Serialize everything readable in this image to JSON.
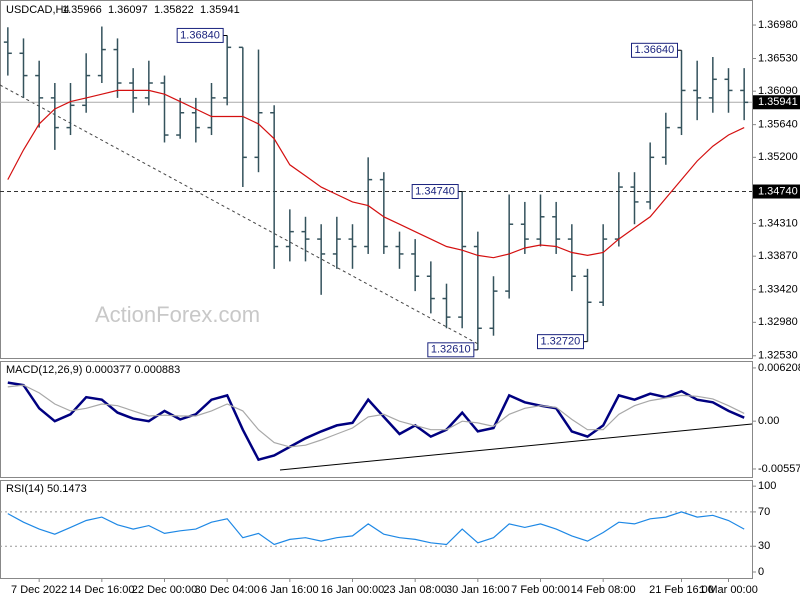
{
  "chart_data": [
    {
      "type": "ohlc",
      "title": "USDCAD,H4",
      "header_values": [
        "1.35966",
        "1.36097",
        "1.35822",
        "1.35941"
      ],
      "watermark": "ActionForex.com",
      "categories": [
        null,
        null,
        "7 Dec 2022",
        null,
        null,
        null,
        "14 Dec 16:00",
        null,
        null,
        null,
        "22 Dec 00:00",
        null,
        null,
        null,
        "30 Dec 04:00",
        null,
        null,
        null,
        "6 Jan 16:00",
        null,
        null,
        null,
        "16 Jan 00:00",
        null,
        null,
        null,
        "23 Jan 08:00",
        null,
        null,
        null,
        "30 Jan 16:00",
        null,
        null,
        null,
        "7 Feb 00:00",
        null,
        null,
        null,
        "14 Feb 08:00",
        null,
        null,
        null,
        null,
        "21 Feb 16:00",
        null,
        null,
        "1 Mar 00:00",
        null
      ],
      "open": [
        1.3675,
        1.366,
        1.363,
        1.36,
        1.356,
        1.359,
        1.363,
        1.3665,
        1.362,
        1.36,
        1.362,
        1.355,
        1.358,
        1.356,
        1.36,
        1.3668,
        1.352,
        1.358,
        1.34,
        1.342,
        1.341,
        1.339,
        1.341,
        1.34,
        1.349,
        1.34,
        1.339,
        1.336,
        1.333,
        1.3305,
        1.34,
        1.329,
        1.334,
        1.343,
        1.341,
        1.344,
        1.341,
        1.336,
        1.3325,
        1.341,
        1.348,
        1.346,
        1.352,
        1.356,
        1.361,
        1.36,
        1.3625,
        1.361
      ],
      "high": [
        1.3695,
        1.368,
        1.365,
        1.362,
        1.362,
        1.366,
        1.3696,
        1.368,
        1.364,
        1.365,
        1.363,
        1.36,
        1.36,
        1.362,
        1.3684,
        1.3668,
        1.3665,
        1.359,
        1.345,
        1.344,
        1.343,
        1.344,
        1.343,
        1.352,
        1.35,
        1.342,
        1.341,
        1.338,
        1.335,
        1.3474,
        1.342,
        1.336,
        1.347,
        1.346,
        1.347,
        1.346,
        1.343,
        1.337,
        1.343,
        1.35,
        1.35,
        1.354,
        1.358,
        1.3664,
        1.365,
        1.3655,
        1.364,
        1.364
      ],
      "low": [
        1.363,
        1.36,
        1.356,
        1.353,
        1.355,
        1.358,
        1.362,
        1.36,
        1.358,
        1.359,
        1.354,
        1.3545,
        1.354,
        1.355,
        1.359,
        1.348,
        1.35,
        1.337,
        1.338,
        1.338,
        1.3335,
        1.337,
        1.337,
        1.339,
        1.339,
        1.337,
        1.334,
        1.331,
        1.329,
        1.329,
        1.3261,
        1.328,
        1.333,
        1.339,
        1.34,
        1.339,
        1.334,
        1.3272,
        1.332,
        1.34,
        1.343,
        1.345,
        1.351,
        1.355,
        1.357,
        1.358,
        1.358,
        1.357
      ],
      "close": [
        1.366,
        1.363,
        1.36,
        1.356,
        1.359,
        1.363,
        1.3665,
        1.362,
        1.36,
        1.362,
        1.355,
        1.358,
        1.356,
        1.36,
        1.3668,
        1.352,
        1.358,
        1.34,
        1.342,
        1.341,
        1.339,
        1.341,
        1.34,
        1.349,
        1.34,
        1.339,
        1.336,
        1.333,
        1.3305,
        1.34,
        1.329,
        1.334,
        1.343,
        1.341,
        1.344,
        1.341,
        1.336,
        1.3325,
        1.341,
        1.348,
        1.346,
        1.352,
        1.356,
        1.361,
        1.36,
        1.3625,
        1.361,
        1.3594
      ],
      "color": "#34525c",
      "series": [
        {
          "color": "#d41010",
          "values": [
            1.349,
            1.353,
            1.3565,
            1.3585,
            1.3595,
            1.36,
            1.3605,
            1.361,
            1.361,
            1.361,
            1.3605,
            1.3595,
            1.3585,
            1.3575,
            1.3575,
            1.3575,
            1.3565,
            1.3545,
            1.351,
            1.3495,
            1.348,
            1.347,
            1.346,
            1.3455,
            1.344,
            1.343,
            1.342,
            1.341,
            1.34,
            1.3395,
            1.3388,
            1.3385,
            1.339,
            1.3398,
            1.3402,
            1.34,
            1.3392,
            1.3388,
            1.3392,
            1.341,
            1.3425,
            1.344,
            1.3465,
            1.349,
            1.3515,
            1.3535,
            1.355,
            1.356
          ]
        }
      ],
      "ylim": [
        1.325,
        1.3729
      ],
      "yticks": [
        {
          "value": 1.3698,
          "label": "1.36980"
        },
        {
          "value": 1.3653,
          "label": "1.36530"
        },
        {
          "value": 1.3609,
          "label": "1.36090"
        },
        {
          "value": 1.3564,
          "label": "1.35640"
        },
        {
          "value": 1.352,
          "label": "1.35200"
        },
        {
          "value": 1.3431,
          "label": "1.34310"
        },
        {
          "value": 1.3387,
          "label": "1.33870"
        },
        {
          "value": 1.3342,
          "label": "1.33420"
        },
        {
          "value": 1.3298,
          "label": "1.32980"
        },
        {
          "value": 1.3253,
          "label": "1.32530"
        }
      ],
      "levels": [
        {
          "value": 1.3474,
          "label": "1.34740"
        }
      ],
      "last_price": {
        "value": 1.35941,
        "label": "1.35941"
      },
      "annotations": [
        {
          "value": 1.3684,
          "label": "1.36840"
        },
        {
          "value": 1.3664,
          "label": "1.36640"
        },
        {
          "value": 1.3474,
          "label": "1.34740"
        },
        {
          "value": 1.3261,
          "label": "1.32610"
        },
        {
          "value": 1.3272,
          "label": "1.32720"
        }
      ]
    },
    {
      "type": "line",
      "title": "MACD(12,26,9) 0.000377 0.000883",
      "series": [
        {
          "color": "#000080",
          "values": [
            0.0045,
            0.0042,
            0.0015,
            0.0,
            0.0008,
            0.0028,
            0.0025,
            0.001,
            0.0003,
            0.0,
            0.0012,
            0.0002,
            0.0008,
            0.0025,
            0.003,
            -0.001,
            -0.0045,
            -0.004,
            -0.003,
            -0.002,
            -0.0012,
            -0.0005,
            -0.0002,
            0.0025,
            0.0005,
            -0.0015,
            -0.0005,
            -0.0018,
            -0.001,
            0.001,
            -0.0012,
            -0.0008,
            0.003,
            0.0022,
            0.0018,
            0.0015,
            -0.0012,
            -0.0018,
            -0.0005,
            0.003,
            0.0025,
            0.0032,
            0.0028,
            0.0035,
            0.0025,
            0.0022,
            0.0012,
            0.0004
          ]
        },
        {
          "color": "#a8a8a8",
          "values": [
            0.004,
            0.0042,
            0.0033,
            0.002,
            0.0012,
            0.0015,
            0.002,
            0.0018,
            0.0012,
            0.0006,
            0.0007,
            0.0006,
            0.0006,
            0.0012,
            0.002,
            0.0012,
            -0.001,
            -0.0025,
            -0.003,
            -0.0028,
            -0.0022,
            -0.0015,
            -0.0008,
            0.0005,
            0.0008,
            0.0,
            -0.0005,
            -0.001,
            -0.001,
            0.0,
            -0.0002,
            -0.0006,
            0.0008,
            0.0015,
            0.0018,
            0.0016,
            0.0002,
            -0.001,
            -0.001,
            0.0008,
            0.0018,
            0.0024,
            0.0027,
            0.003,
            0.0029,
            0.0026,
            0.0018,
            0.0009
          ]
        }
      ],
      "ylim": [
        -0.00663,
        0.0069
      ],
      "yticks": [
        0.006208,
        {
          "value": 0,
          "label": "0.00"
        },
        -0.005577
      ]
    },
    {
      "type": "line",
      "title": "RSI(14) 50.1473",
      "series": [
        {
          "color": "#1e88e5",
          "values": [
            68,
            58,
            50,
            44,
            52,
            60,
            64,
            55,
            50,
            54,
            45,
            48,
            50,
            58,
            62,
            40,
            45,
            32,
            38,
            40,
            36,
            40,
            42,
            56,
            44,
            40,
            38,
            34,
            32,
            50,
            34,
            40,
            56,
            52,
            56,
            50,
            42,
            36,
            46,
            58,
            56,
            62,
            64,
            70,
            64,
            66,
            60,
            50
          ]
        }
      ],
      "ylim": [
        -7,
        106
      ],
      "yticks": [
        100,
        70,
        30,
        0
      ],
      "levels": [
        70,
        30
      ]
    }
  ]
}
